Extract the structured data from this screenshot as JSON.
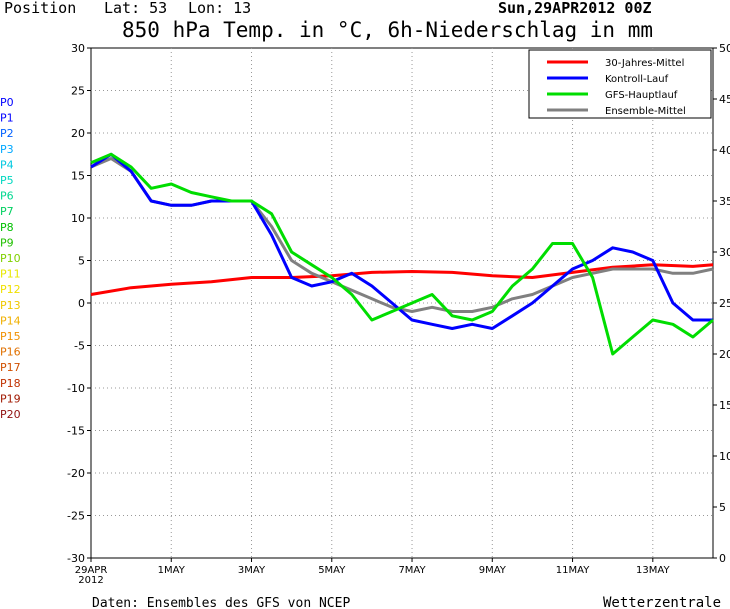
{
  "header": {
    "position_label": "Position",
    "lat_label": "Lat: 53",
    "lon_label": "Lon: 13",
    "run_label": "Sun,29APR2012 00Z",
    "title": "850 hPa Temp. in °C, 6h-Niederschlag in mm"
  },
  "footer": {
    "source": "Daten: Ensembles des GFS von NCEP",
    "brand": "Wetterzentrale"
  },
  "members": [
    "P0",
    "P1",
    "P2",
    "P3",
    "P4",
    "P5",
    "P6",
    "P7",
    "P8",
    "P9",
    "P10",
    "P11",
    "P12",
    "P13",
    "P14",
    "P15",
    "P16",
    "P17",
    "P18",
    "P19",
    "P20"
  ],
  "member_colors": [
    "#0000ff",
    "#0000ff",
    "#0060ff",
    "#00a8ff",
    "#00c8e0",
    "#00d8c0",
    "#00d890",
    "#00d060",
    "#00c000",
    "#20c000",
    "#80d000",
    "#e8e800",
    "#f0e000",
    "#f0c800",
    "#f0b000",
    "#f09000",
    "#e07000",
    "#d05000",
    "#c03000",
    "#a01800",
    "#901010"
  ],
  "legend": [
    {
      "label": "30-Jahres-Mittel",
      "color": "#ff0000"
    },
    {
      "label": "Kontroll-Lauf",
      "color": "#0000ff"
    },
    {
      "label": "GFS-Hauptlauf",
      "color": "#00dd00"
    },
    {
      "label": "Ensemble-Mittel",
      "color": "#808080"
    }
  ],
  "chart_data": {
    "type": "line",
    "title": "850 hPa Temp. in °C, 6h-Niederschlag in mm",
    "x_ticks": [
      "29APR\n2012",
      "1MAY",
      "3MAY",
      "5MAY",
      "7MAY",
      "9MAY",
      "11MAY",
      "13MAY"
    ],
    "x_tick_days": [
      0,
      2,
      4,
      6,
      8,
      10,
      12,
      14
    ],
    "x_range_days": [
      0,
      15.5
    ],
    "y_left": {
      "ticks": [
        30,
        25,
        20,
        15,
        10,
        5,
        0,
        -5,
        -10,
        -15,
        -20,
        -25,
        -30
      ],
      "range": [
        -30,
        30
      ],
      "label": "°C"
    },
    "y_right": {
      "ticks": [
        50,
        45,
        40,
        35,
        30,
        25,
        20,
        15,
        10,
        5,
        0
      ],
      "range": [
        0,
        50
      ],
      "label": "mm"
    },
    "grid": true,
    "legend_position": "top-right",
    "series": [
      {
        "name": "30-Jahres-Mittel",
        "color": "#ff0000",
        "x": [
          0,
          1,
          2,
          3,
          4,
          5,
          6,
          7,
          8,
          9,
          10,
          11,
          12,
          13,
          14,
          15,
          15.5
        ],
        "values": [
          1,
          1.8,
          2.2,
          2.5,
          3,
          3,
          3.2,
          3.6,
          3.7,
          3.6,
          3.2,
          3,
          3.6,
          4.2,
          4.5,
          4.3,
          4.5
        ]
      },
      {
        "name": "Kontroll-Lauf",
        "color": "#0000ff",
        "x": [
          0,
          0.5,
          1,
          1.5,
          2,
          2.5,
          3,
          3.5,
          4,
          4.5,
          5,
          5.5,
          6,
          6.5,
          7,
          7.5,
          8,
          8.5,
          9,
          9.5,
          10,
          10.5,
          11,
          11.5,
          12,
          12.5,
          13,
          13.5,
          14,
          14.5,
          15,
          15.5
        ],
        "values": [
          16,
          17.5,
          15.5,
          12,
          11.5,
          11.5,
          12,
          12,
          12,
          8,
          3,
          2,
          2.5,
          3.5,
          2,
          0,
          -2,
          -2.5,
          -3,
          -2.5,
          -3,
          -1.5,
          0,
          2,
          4,
          5,
          6.5,
          6,
          5,
          0,
          -2,
          -2
        ]
      },
      {
        "name": "GFS-Hauptlauf",
        "color": "#00dd00",
        "x": [
          0,
          0.5,
          1,
          1.5,
          2,
          2.5,
          3,
          3.5,
          4,
          4.5,
          5,
          5.5,
          6,
          6.5,
          7,
          7.5,
          8,
          8.5,
          9,
          9.5,
          10,
          10.5,
          11,
          11.5,
          12,
          12.5,
          13,
          13.5,
          14,
          14.5,
          15,
          15.5
        ],
        "values": [
          16.5,
          17.5,
          16,
          13.5,
          14,
          13,
          12.5,
          12,
          12,
          10.5,
          6,
          4.5,
          3,
          1,
          -2,
          -1,
          0,
          1,
          -1.5,
          -2,
          -1,
          2,
          4,
          7,
          7,
          3,
          -6,
          -4,
          -2,
          -2.5,
          -4,
          -2
        ]
      },
      {
        "name": "Ensemble-Mittel",
        "color": "#808080",
        "x": [
          0,
          0.5,
          1,
          1.5,
          2,
          2.5,
          3,
          3.5,
          4,
          4.5,
          5,
          5.5,
          6,
          6.5,
          7,
          7.5,
          8,
          8.5,
          9,
          9.5,
          10,
          10.5,
          11,
          11.5,
          12,
          12.5,
          13,
          13.5,
          14,
          14.5,
          15,
          15.5
        ],
        "values": [
          16,
          17,
          15.5,
          12,
          11.5,
          11.5,
          12,
          12,
          12,
          9,
          5,
          3.5,
          2.5,
          1.5,
          0.5,
          -0.5,
          -1,
          -0.5,
          -1,
          -1,
          -0.5,
          0.5,
          1,
          2,
          3,
          3.5,
          4,
          4,
          4,
          3.5,
          3.5,
          4
        ]
      }
    ]
  }
}
